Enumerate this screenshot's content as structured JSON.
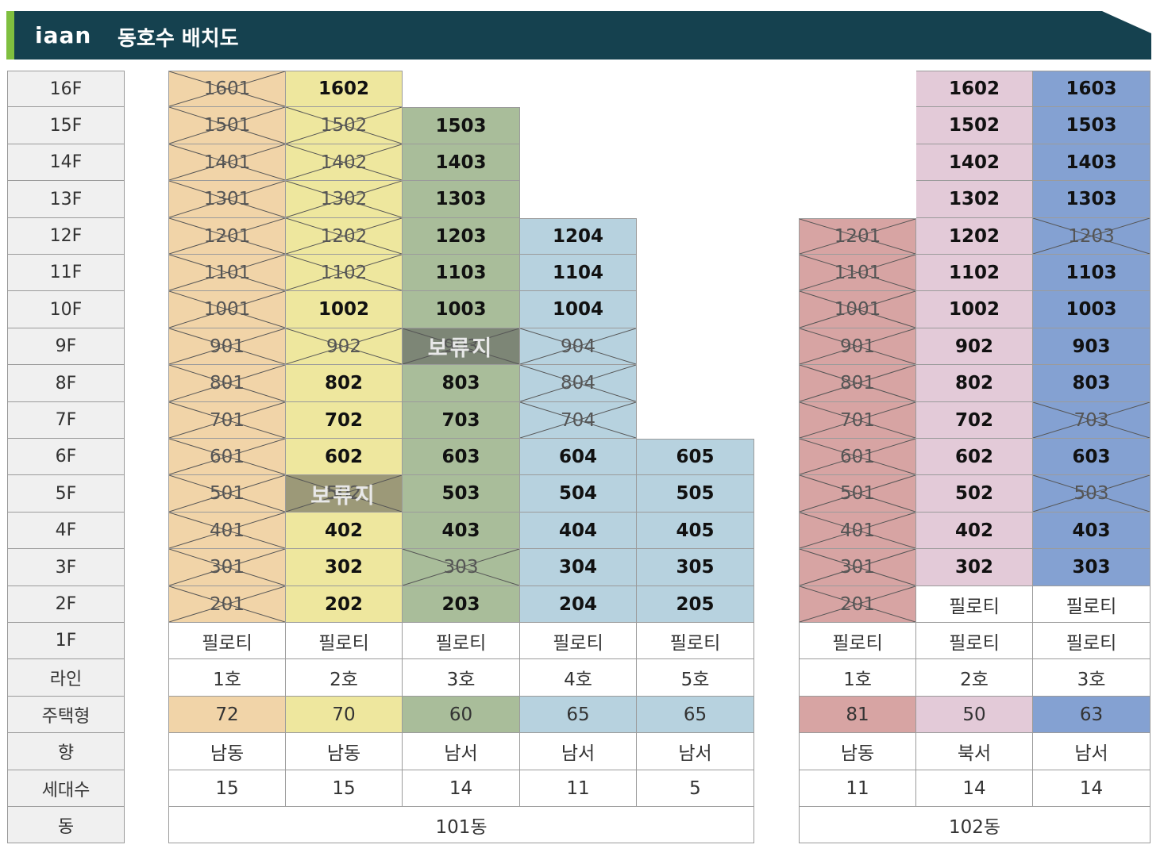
{
  "header": {
    "logo": "iaan",
    "title": "동호수 배치도"
  },
  "row_labels": [
    "16F",
    "15F",
    "14F",
    "13F",
    "12F",
    "11F",
    "10F",
    "9F",
    "8F",
    "7F",
    "6F",
    "5F",
    "4F",
    "3F",
    "2F",
    "1F",
    "라인",
    "주택형",
    "향",
    "세대수",
    "동"
  ],
  "buildings": [
    {
      "name": "101동",
      "columns": [
        {
          "line": "1호",
          "type": "72",
          "direction": "남동",
          "count": "15",
          "color": "#f1d4a8",
          "units": [
            {
              "floor": 16,
              "no": "1601",
              "status": "sold"
            },
            {
              "floor": 15,
              "no": "1501",
              "status": "sold"
            },
            {
              "floor": 14,
              "no": "1401",
              "status": "sold"
            },
            {
              "floor": 13,
              "no": "1301",
              "status": "sold"
            },
            {
              "floor": 12,
              "no": "1201",
              "status": "sold"
            },
            {
              "floor": 11,
              "no": "1101",
              "status": "sold"
            },
            {
              "floor": 10,
              "no": "1001",
              "status": "sold"
            },
            {
              "floor": 9,
              "no": "901",
              "status": "sold"
            },
            {
              "floor": 8,
              "no": "801",
              "status": "sold"
            },
            {
              "floor": 7,
              "no": "701",
              "status": "sold"
            },
            {
              "floor": 6,
              "no": "601",
              "status": "sold"
            },
            {
              "floor": 5,
              "no": "501",
              "status": "sold"
            },
            {
              "floor": 4,
              "no": "401",
              "status": "sold"
            },
            {
              "floor": 3,
              "no": "301",
              "status": "sold"
            },
            {
              "floor": 2,
              "no": "201",
              "status": "sold"
            },
            {
              "floor": 1,
              "no": "필로티",
              "status": "piloti"
            }
          ]
        },
        {
          "line": "2호",
          "type": "70",
          "direction": "남동",
          "count": "15",
          "color": "#eee79e",
          "units": [
            {
              "floor": 16,
              "no": "1602",
              "status": "avail"
            },
            {
              "floor": 15,
              "no": "1502",
              "status": "sold"
            },
            {
              "floor": 14,
              "no": "1402",
              "status": "sold"
            },
            {
              "floor": 13,
              "no": "1302",
              "status": "sold"
            },
            {
              "floor": 12,
              "no": "1202",
              "status": "sold"
            },
            {
              "floor": 11,
              "no": "1102",
              "status": "sold"
            },
            {
              "floor": 10,
              "no": "1002",
              "status": "avail"
            },
            {
              "floor": 9,
              "no": "902",
              "status": "sold"
            },
            {
              "floor": 8,
              "no": "802",
              "status": "avail"
            },
            {
              "floor": 7,
              "no": "702",
              "status": "avail"
            },
            {
              "floor": 6,
              "no": "602",
              "status": "avail"
            },
            {
              "floor": 5,
              "no": "502",
              "status": "reserved",
              "overlay": "보류지"
            },
            {
              "floor": 4,
              "no": "402",
              "status": "avail"
            },
            {
              "floor": 3,
              "no": "302",
              "status": "avail"
            },
            {
              "floor": 2,
              "no": "202",
              "status": "avail"
            },
            {
              "floor": 1,
              "no": "필로티",
              "status": "piloti"
            }
          ]
        },
        {
          "line": "3호",
          "type": "60",
          "direction": "남서",
          "count": "14",
          "color": "#a9bd9a",
          "units": [
            {
              "floor": 15,
              "no": "1503",
              "status": "avail"
            },
            {
              "floor": 14,
              "no": "1403",
              "status": "avail"
            },
            {
              "floor": 13,
              "no": "1303",
              "status": "avail"
            },
            {
              "floor": 12,
              "no": "1203",
              "status": "avail"
            },
            {
              "floor": 11,
              "no": "1103",
              "status": "avail"
            },
            {
              "floor": 10,
              "no": "1003",
              "status": "avail"
            },
            {
              "floor": 9,
              "no": "903",
              "status": "reserved",
              "overlay": "보류지"
            },
            {
              "floor": 8,
              "no": "803",
              "status": "avail"
            },
            {
              "floor": 7,
              "no": "703",
              "status": "avail"
            },
            {
              "floor": 6,
              "no": "603",
              "status": "avail"
            },
            {
              "floor": 5,
              "no": "503",
              "status": "avail"
            },
            {
              "floor": 4,
              "no": "403",
              "status": "avail"
            },
            {
              "floor": 3,
              "no": "303",
              "status": "sold"
            },
            {
              "floor": 2,
              "no": "203",
              "status": "avail"
            },
            {
              "floor": 1,
              "no": "필로티",
              "status": "piloti"
            }
          ]
        },
        {
          "line": "4호",
          "type": "65",
          "direction": "남서",
          "count": "11",
          "color": "#b7d2df",
          "units": [
            {
              "floor": 12,
              "no": "1204",
              "status": "avail"
            },
            {
              "floor": 11,
              "no": "1104",
              "status": "avail"
            },
            {
              "floor": 10,
              "no": "1004",
              "status": "avail"
            },
            {
              "floor": 9,
              "no": "904",
              "status": "sold"
            },
            {
              "floor": 8,
              "no": "804",
              "status": "sold"
            },
            {
              "floor": 7,
              "no": "704",
              "status": "sold"
            },
            {
              "floor": 6,
              "no": "604",
              "status": "avail"
            },
            {
              "floor": 5,
              "no": "504",
              "status": "avail"
            },
            {
              "floor": 4,
              "no": "404",
              "status": "avail"
            },
            {
              "floor": 3,
              "no": "304",
              "status": "avail"
            },
            {
              "floor": 2,
              "no": "204",
              "status": "avail"
            },
            {
              "floor": 1,
              "no": "필로티",
              "status": "piloti"
            }
          ]
        },
        {
          "line": "5호",
          "type": "65",
          "direction": "남서",
          "count": "5",
          "color": "#b7d2df",
          "units": [
            {
              "floor": 6,
              "no": "605",
              "status": "avail"
            },
            {
              "floor": 5,
              "no": "505",
              "status": "avail"
            },
            {
              "floor": 4,
              "no": "405",
              "status": "avail"
            },
            {
              "floor": 3,
              "no": "305",
              "status": "avail"
            },
            {
              "floor": 2,
              "no": "205",
              "status": "avail"
            },
            {
              "floor": 1,
              "no": "필로티",
              "status": "piloti"
            }
          ]
        }
      ]
    },
    {
      "name": "102동",
      "columns": [
        {
          "line": "1호",
          "type": "81",
          "direction": "남동",
          "count": "11",
          "color": "#d7a4a3",
          "units": [
            {
              "floor": 12,
              "no": "1201",
              "status": "sold"
            },
            {
              "floor": 11,
              "no": "1101",
              "status": "sold"
            },
            {
              "floor": 10,
              "no": "1001",
              "status": "sold"
            },
            {
              "floor": 9,
              "no": "901",
              "status": "sold"
            },
            {
              "floor": 8,
              "no": "801",
              "status": "sold"
            },
            {
              "floor": 7,
              "no": "701",
              "status": "sold"
            },
            {
              "floor": 6,
              "no": "601",
              "status": "sold"
            },
            {
              "floor": 5,
              "no": "501",
              "status": "sold"
            },
            {
              "floor": 4,
              "no": "401",
              "status": "sold"
            },
            {
              "floor": 3,
              "no": "301",
              "status": "sold"
            },
            {
              "floor": 2,
              "no": "201",
              "status": "sold"
            },
            {
              "floor": 1,
              "no": "필로티",
              "status": "piloti"
            }
          ]
        },
        {
          "line": "2호",
          "type": "50",
          "direction": "북서",
          "count": "14",
          "color": "#e3cad8",
          "units": [
            {
              "floor": 16,
              "no": "1602",
              "status": "avail"
            },
            {
              "floor": 15,
              "no": "1502",
              "status": "avail"
            },
            {
              "floor": 14,
              "no": "1402",
              "status": "avail"
            },
            {
              "floor": 13,
              "no": "1302",
              "status": "avail"
            },
            {
              "floor": 12,
              "no": "1202",
              "status": "avail"
            },
            {
              "floor": 11,
              "no": "1102",
              "status": "avail"
            },
            {
              "floor": 10,
              "no": "1002",
              "status": "avail"
            },
            {
              "floor": 9,
              "no": "902",
              "status": "avail"
            },
            {
              "floor": 8,
              "no": "802",
              "status": "avail"
            },
            {
              "floor": 7,
              "no": "702",
              "status": "avail"
            },
            {
              "floor": 6,
              "no": "602",
              "status": "avail"
            },
            {
              "floor": 5,
              "no": "502",
              "status": "avail"
            },
            {
              "floor": 4,
              "no": "402",
              "status": "avail"
            },
            {
              "floor": 3,
              "no": "302",
              "status": "avail"
            },
            {
              "floor": 2,
              "no": "필로티",
              "status": "piloti"
            },
            {
              "floor": 1,
              "no": "필로티",
              "status": "piloti"
            }
          ]
        },
        {
          "line": "3호",
          "type": "63",
          "direction": "남서",
          "count": "14",
          "color": "#84a1d2",
          "units": [
            {
              "floor": 16,
              "no": "1603",
              "status": "avail"
            },
            {
              "floor": 15,
              "no": "1503",
              "status": "avail"
            },
            {
              "floor": 14,
              "no": "1403",
              "status": "avail"
            },
            {
              "floor": 13,
              "no": "1303",
              "status": "avail"
            },
            {
              "floor": 12,
              "no": "1203",
              "status": "sold"
            },
            {
              "floor": 11,
              "no": "1103",
              "status": "avail"
            },
            {
              "floor": 10,
              "no": "1003",
              "status": "avail"
            },
            {
              "floor": 9,
              "no": "903",
              "status": "avail"
            },
            {
              "floor": 8,
              "no": "803",
              "status": "avail"
            },
            {
              "floor": 7,
              "no": "703",
              "status": "sold"
            },
            {
              "floor": 6,
              "no": "603",
              "status": "avail"
            },
            {
              "floor": 5,
              "no": "503",
              "status": "sold"
            },
            {
              "floor": 4,
              "no": "403",
              "status": "avail"
            },
            {
              "floor": 3,
              "no": "303",
              "status": "avail"
            },
            {
              "floor": 2,
              "no": "필로티",
              "status": "piloti"
            },
            {
              "floor": 1,
              "no": "필로티",
              "status": "piloti"
            }
          ]
        }
      ]
    }
  ]
}
